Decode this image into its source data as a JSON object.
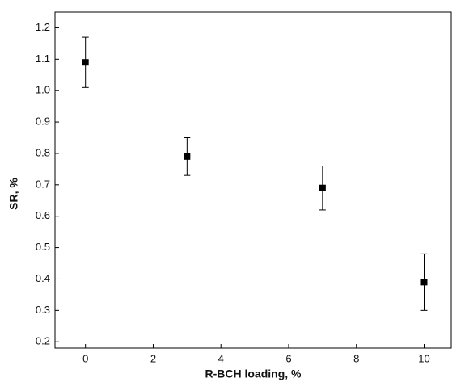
{
  "chart_data": {
    "type": "scatter",
    "x_label": "R-BCH loading, %",
    "y_label": "SR, %",
    "x": [
      0,
      3,
      7,
      10
    ],
    "values": [
      1.09,
      0.79,
      0.69,
      0.39
    ],
    "errors": [
      0.08,
      0.06,
      0.07,
      0.09
    ],
    "color": "#000000",
    "xlim": [
      -0.9,
      10.8
    ],
    "xticks": [
      0,
      2,
      4,
      6,
      8,
      10
    ],
    "ylim": [
      0.18,
      1.25
    ],
    "yticks": [
      0.2,
      0.3,
      0.4,
      0.5,
      0.6,
      0.7,
      0.8,
      0.9,
      {
        "value": 1,
        "label": "1.0"
      },
      1.1,
      1.2
    ]
  }
}
